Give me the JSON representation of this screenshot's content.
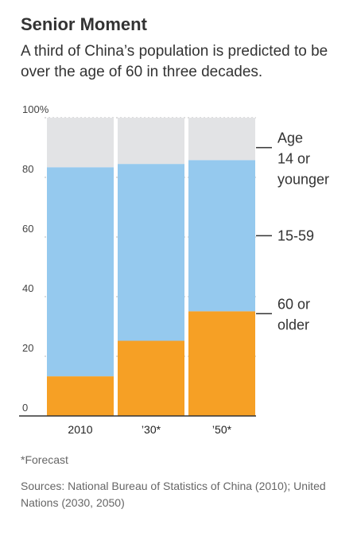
{
  "title": "Senior Moment",
  "subtitle": "A third of China’s population is predicted to be over the age of 60 in three decades.",
  "footnote": "*Forecast",
  "sources": "Sources: National Bureau of Statistics of China (2010); United Nations (2030, 2050)",
  "colors": {
    "age_0_14": "#e2e3e5",
    "age_15_59": "#95c9ee",
    "age_60_plus": "#f6a025",
    "axis": "#333333",
    "grid": "#bbbbbb",
    "tick_text": "#444444"
  },
  "chart_data": {
    "type": "bar",
    "stacked": true,
    "categories": [
      "2010",
      "’30*",
      "’50*"
    ],
    "series": [
      {
        "name": "60 or older",
        "values": [
          13.3,
          25.2,
          35.1
        ]
      },
      {
        "name": "15-59",
        "values": [
          70.1,
          59.3,
          50.7
        ]
      },
      {
        "name": "Age 14 or younger",
        "values": [
          16.6,
          15.5,
          14.2
        ]
      }
    ],
    "ylim": [
      0,
      100
    ],
    "yticks": [
      {
        "value": 0,
        "label": "0"
      },
      {
        "value": 20,
        "label": "20"
      },
      {
        "value": 40,
        "label": "40"
      },
      {
        "value": 60,
        "label": "60"
      },
      {
        "value": 80,
        "label": "80"
      },
      {
        "value": 100,
        "label": "100%"
      }
    ],
    "legend_labels": [
      {
        "series": 2,
        "lines": [
          "Age",
          "14 or",
          "younger"
        ]
      },
      {
        "series": 1,
        "lines": [
          "15-59"
        ]
      },
      {
        "series": 0,
        "lines": [
          "60 or",
          "older"
        ]
      }
    ],
    "grid": true
  }
}
